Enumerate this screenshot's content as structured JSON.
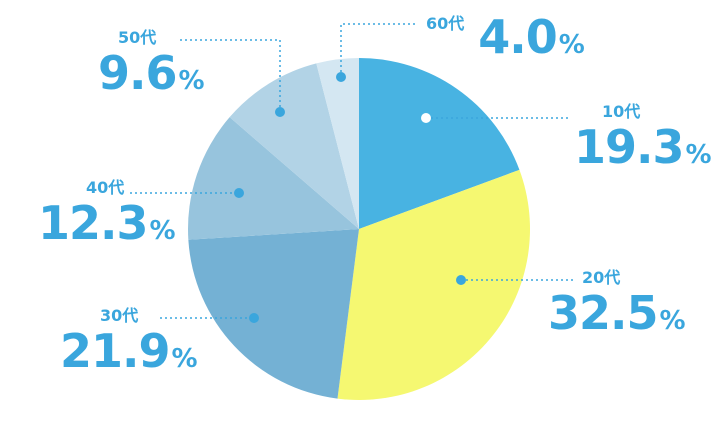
{
  "chart_data": {
    "type": "pie",
    "categories": [
      "10代",
      "20代",
      "30代",
      "40代",
      "50代",
      "60代"
    ],
    "values": [
      19.3,
      32.5,
      21.9,
      12.3,
      9.6,
      4.0
    ],
    "value_labels": [
      "19.3",
      "32.5",
      "21.9",
      "12.3",
      "9.6",
      "4.0"
    ],
    "unit": "%",
    "colors": [
      "#48b3e2",
      "#f5f871",
      "#74b1d4",
      "#97c4dd",
      "#b2d3e6",
      "#d4e7f2"
    ],
    "label_color": "#3aa6dd",
    "leader_color": "#3aa6dd",
    "start_angle": "12 o'clock",
    "direction": "clockwise",
    "legend": "none"
  }
}
